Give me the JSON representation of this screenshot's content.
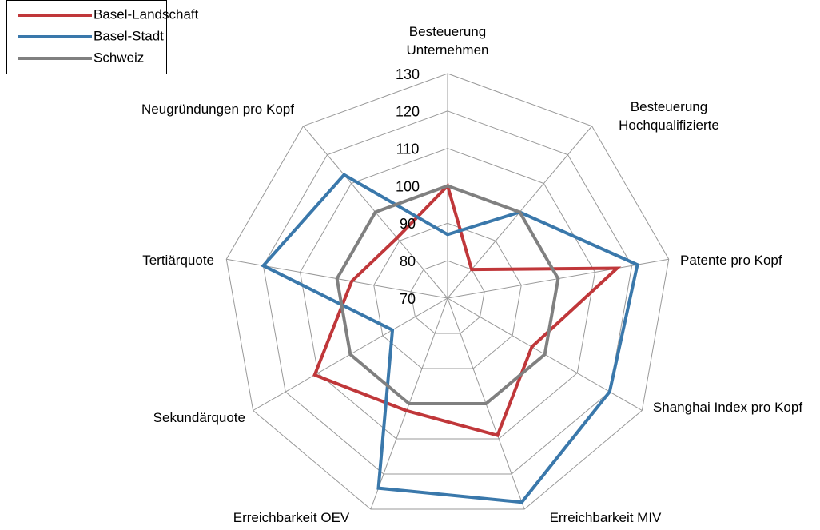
{
  "chart_data": {
    "type": "radar",
    "categories": [
      "Besteuerung Unternehmen",
      "Besteuerung Hochqualifizierte",
      "Patente pro Kopf",
      "Shanghai Index pro Kopf",
      "Erreichbarkeit MIV",
      "Erreichbarkeit OEV",
      "Sekundärquote",
      "Tertiärquote",
      "Neugründungen pro Kopf"
    ],
    "series": [
      {
        "name": "Basel-Landschaft",
        "color": "#c0373a",
        "values": [
          100,
          80,
          116,
          96,
          109,
          102,
          111,
          96,
          91
        ]
      },
      {
        "name": "Basel-Stadt",
        "color": "#3a78ab",
        "values": [
          87,
          100,
          121.5,
          120,
          128,
          124,
          87,
          120,
          113
        ]
      },
      {
        "name": "Schweiz",
        "color": "#808080",
        "values": [
          100,
          100,
          100,
          100,
          100,
          100,
          100,
          100,
          100
        ]
      }
    ],
    "ylim": [
      70,
      130
    ],
    "yticks": [
      70,
      80,
      90,
      100,
      110,
      120,
      130
    ],
    "grid": true,
    "legend": "top-left"
  }
}
